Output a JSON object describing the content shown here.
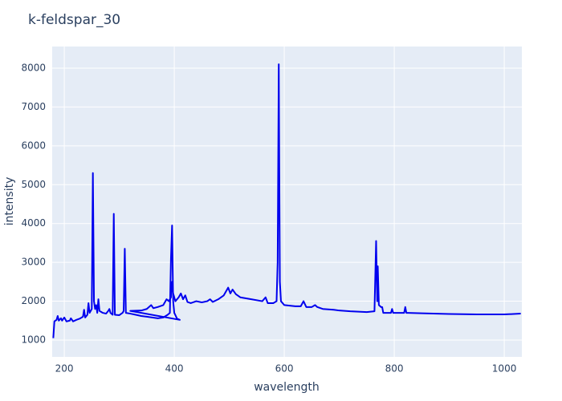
{
  "chart_data": {
    "type": "line",
    "title": "k-feldspar_30",
    "x_label": "wavelength",
    "y_label": "intensity",
    "x": [
      180,
      182,
      186,
      188,
      190,
      194,
      196,
      200,
      204,
      210,
      212,
      216,
      222,
      228,
      234,
      236,
      238,
      242,
      244,
      246,
      250,
      252,
      254,
      256,
      258,
      260,
      262,
      264,
      270,
      276,
      280,
      282,
      284,
      288,
      290,
      292,
      300,
      306,
      308,
      310,
      312,
      320,
      330,
      340,
      350,
      360,
      370,
      380,
      388,
      392,
      394,
      396,
      398,
      400,
      405,
      410,
      320,
      340,
      350,
      358,
      362,
      370,
      380,
      386,
      390,
      394,
      396,
      398,
      402,
      408,
      412,
      416,
      420,
      424,
      430,
      440,
      450,
      460,
      465,
      470,
      480,
      490,
      498,
      502,
      506,
      512,
      520,
      540,
      560,
      566,
      570,
      580,
      586,
      588,
      590,
      592,
      594,
      600,
      620,
      630,
      635,
      640,
      650,
      656,
      660,
      670,
      690,
      700,
      720,
      750,
      764,
      767,
      769,
      770,
      772,
      776,
      778,
      780,
      794,
      796,
      798,
      818,
      820,
      822,
      850,
      900,
      950,
      1000,
      1030
    ],
    "values": [
      1050,
      1480,
      1520,
      1620,
      1500,
      1560,
      1500,
      1580,
      1480,
      1500,
      1560,
      1480,
      1520,
      1550,
      1600,
      1780,
      1580,
      1650,
      1950,
      1700,
      1800,
      5300,
      2000,
      1800,
      1900,
      1700,
      2050,
      1750,
      1700,
      1680,
      1750,
      1800,
      1700,
      1650,
      4250,
      1650,
      1640,
      1700,
      1750,
      3350,
      1700,
      1680,
      1650,
      1620,
      1600,
      1580,
      1560,
      1580,
      1650,
      1700,
      3100,
      3950,
      2000,
      1700,
      1550,
      1520,
      1750,
      1760,
      1800,
      1900,
      1820,
      1850,
      1900,
      2050,
      2000,
      2100,
      2500,
      2200,
      2000,
      2100,
      2200,
      2050,
      2150,
      1980,
      1950,
      2000,
      1970,
      2000,
      2050,
      1980,
      2050,
      2150,
      2350,
      2200,
      2300,
      2180,
      2100,
      2050,
      2000,
      2100,
      1950,
      1950,
      2000,
      3000,
      8100,
      2500,
      2000,
      1900,
      1870,
      1870,
      2000,
      1850,
      1850,
      1900,
      1850,
      1800,
      1780,
      1760,
      1740,
      1720,
      1740,
      3550,
      2000,
      2900,
      1900,
      1850,
      1850,
      1700,
      1700,
      1800,
      1700,
      1700,
      1850,
      1700,
      1690,
      1670,
      1660,
      1660,
      1680
    ],
    "color": "#0000ee",
    "xlim": [
      178,
      1032
    ],
    "xticks": [
      200,
      400,
      600,
      800,
      1000
    ],
    "ylim": [
      566,
      8557
    ],
    "yticks": [
      1000,
      2000,
      3000,
      4000,
      5000,
      6000,
      7000,
      8000
    ],
    "grid": true
  }
}
